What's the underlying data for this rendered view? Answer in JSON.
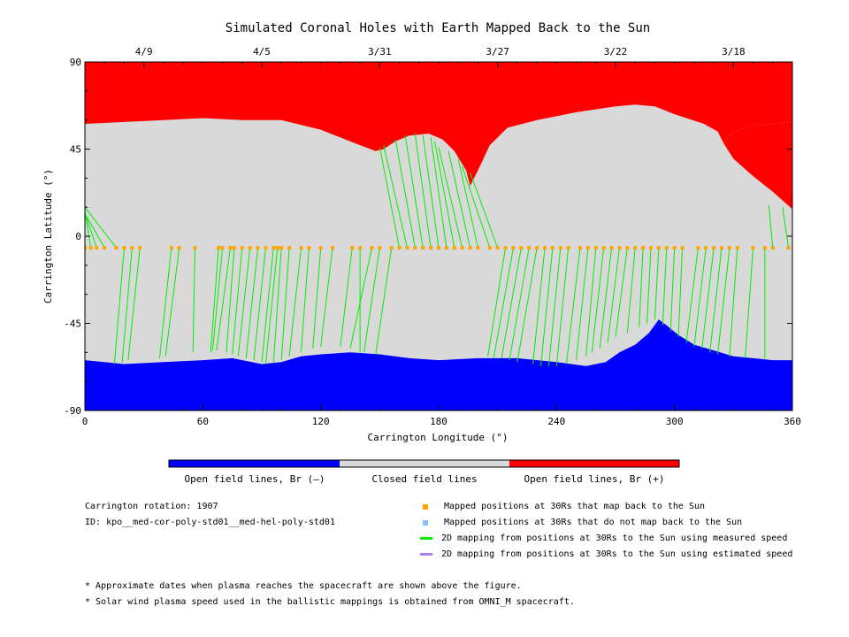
{
  "chart_data": {
    "type": "map",
    "title": "Simulated Coronal Holes with Earth Mapped Back to the Sun",
    "xlabel": "Carrington Longitude (°)",
    "ylabel": "Carrington Latitude (°)",
    "xlim": [
      0,
      360
    ],
    "ylim": [
      -90,
      90
    ],
    "x_ticks": [
      "0",
      "60",
      "120",
      "180",
      "240",
      "300",
      "360"
    ],
    "y_ticks": [
      "-90",
      "-45",
      "0",
      "45",
      "90"
    ],
    "top_axis": {
      "ticks": [
        {
          "label": "4/9",
          "lon": 30
        },
        {
          "label": "4/5",
          "lon": 90
        },
        {
          "label": "3/31",
          "lon": 150
        },
        {
          "label": "3/27",
          "lon": 210
        },
        {
          "label": "3/22",
          "lon": 270
        },
        {
          "label": "3/18",
          "lon": 330
        }
      ]
    },
    "colors": {
      "open_negative": "#0000ff",
      "closed": "#d9d9d9",
      "open_positive": "#ff0000",
      "mapped_point": "#ffa500",
      "unmapped_point": "#87bfff",
      "measured_line": "#00ee00",
      "estimated_line": "#b07cff"
    },
    "north_boundary": [
      [
        0,
        58
      ],
      [
        20,
        59
      ],
      [
        40,
        60
      ],
      [
        60,
        61
      ],
      [
        80,
        60
      ],
      [
        100,
        60
      ],
      [
        120,
        55
      ],
      [
        140,
        47
      ],
      [
        148,
        44
      ],
      [
        152,
        45
      ],
      [
        158,
        49
      ],
      [
        165,
        52
      ],
      [
        175,
        53
      ],
      [
        182,
        50
      ],
      [
        188,
        44
      ],
      [
        194,
        34
      ],
      [
        196,
        26
      ],
      [
        200,
        34
      ],
      [
        206,
        47
      ],
      [
        215,
        56
      ],
      [
        230,
        60
      ],
      [
        250,
        64
      ],
      [
        270,
        67
      ],
      [
        280,
        68
      ],
      [
        290,
        67
      ],
      [
        300,
        63
      ],
      [
        315,
        58
      ],
      [
        322,
        54
      ],
      [
        325,
        48
      ]
    ],
    "north_tongue_upper": [
      [
        325,
        48
      ],
      [
        330,
        54
      ],
      [
        340,
        57
      ],
      [
        350,
        58
      ],
      [
        360,
        59
      ]
    ],
    "north_tongue_lower": [
      [
        325,
        48
      ],
      [
        330,
        40
      ],
      [
        340,
        31
      ],
      [
        350,
        23
      ],
      [
        360,
        14
      ]
    ],
    "south_boundary": [
      [
        0,
        -64
      ],
      [
        20,
        -66
      ],
      [
        40,
        -65
      ],
      [
        60,
        -64
      ],
      [
        75,
        -63
      ],
      [
        90,
        -66
      ],
      [
        100,
        -65
      ],
      [
        110,
        -62
      ],
      [
        120,
        -61
      ],
      [
        135,
        -60
      ],
      [
        150,
        -61
      ],
      [
        165,
        -63
      ],
      [
        180,
        -64
      ],
      [
        200,
        -63
      ],
      [
        220,
        -63
      ],
      [
        240,
        -65
      ],
      [
        255,
        -67
      ],
      [
        265,
        -65
      ],
      [
        272,
        -60
      ],
      [
        280,
        -56
      ],
      [
        287,
        -50
      ],
      [
        292,
        -43
      ],
      [
        296,
        -46
      ],
      [
        302,
        -51
      ],
      [
        310,
        -56
      ],
      [
        320,
        -59
      ],
      [
        330,
        -62
      ],
      [
        340,
        -63
      ],
      [
        350,
        -64
      ],
      [
        360,
        -64
      ]
    ],
    "mapping_lines": [
      [
        0,
        -6,
        0,
        14
      ],
      [
        3,
        -6,
        0,
        13
      ],
      [
        6,
        -6,
        0,
        12
      ],
      [
        10,
        -6,
        1,
        10
      ],
      [
        16,
        -6,
        0,
        15
      ],
      [
        20,
        -6,
        15,
        -66
      ],
      [
        24,
        -6,
        19,
        -65
      ],
      [
        28,
        -6,
        22,
        -64
      ],
      [
        44,
        -6,
        38,
        -63
      ],
      [
        48,
        -6,
        41,
        -62
      ],
      [
        56,
        -6,
        55,
        -60
      ],
      [
        68,
        -6,
        64,
        -60
      ],
      [
        70,
        -6,
        65,
        -59
      ],
      [
        74,
        -6,
        67,
        -59
      ],
      [
        76,
        -6,
        72,
        -60
      ],
      [
        80,
        -6,
        75,
        -61
      ],
      [
        84,
        -6,
        78,
        -62
      ],
      [
        88,
        -6,
        82,
        -63
      ],
      [
        92,
        -6,
        86,
        -64
      ],
      [
        96,
        -6,
        90,
        -65
      ],
      [
        98,
        -6,
        92,
        -66
      ],
      [
        100,
        -6,
        96,
        -65
      ],
      [
        104,
        -6,
        100,
        -64
      ],
      [
        110,
        -6,
        104,
        -62
      ],
      [
        114,
        -6,
        110,
        -60
      ],
      [
        120,
        -6,
        116,
        -58
      ],
      [
        126,
        -6,
        120,
        -57
      ],
      [
        136,
        -6,
        130,
        -57
      ],
      [
        140,
        -6,
        140,
        -60
      ],
      [
        146,
        -6,
        135,
        -58
      ],
      [
        150,
        -6,
        142,
        -60
      ],
      [
        156,
        -6,
        148,
        -61
      ],
      [
        160,
        -6,
        150,
        46
      ],
      [
        164,
        -6,
        152,
        47
      ],
      [
        168,
        -6,
        158,
        50
      ],
      [
        172,
        -6,
        163,
        52
      ],
      [
        176,
        -6,
        168,
        53
      ],
      [
        180,
        -6,
        172,
        52
      ],
      [
        184,
        -6,
        176,
        51
      ],
      [
        188,
        -6,
        178,
        49
      ],
      [
        192,
        -6,
        180,
        46
      ],
      [
        196,
        -6,
        185,
        44
      ],
      [
        200,
        -6,
        190,
        40
      ],
      [
        206,
        -6,
        192,
        36
      ],
      [
        210,
        -6,
        196,
        33
      ],
      [
        214,
        -6,
        205,
        -62
      ],
      [
        218,
        -6,
        208,
        -63
      ],
      [
        222,
        -6,
        212,
        -63
      ],
      [
        226,
        -6,
        216,
        -64
      ],
      [
        230,
        -6,
        220,
        -65
      ],
      [
        234,
        -6,
        228,
        -66
      ],
      [
        238,
        -6,
        232,
        -67
      ],
      [
        242,
        -6,
        236,
        -67
      ],
      [
        246,
        -6,
        240,
        -67
      ],
      [
        252,
        -6,
        245,
        -66
      ],
      [
        256,
        -6,
        250,
        -64
      ],
      [
        260,
        -6,
        255,
        -62
      ],
      [
        264,
        -6,
        258,
        -60
      ],
      [
        268,
        -6,
        262,
        -58
      ],
      [
        272,
        -6,
        266,
        -55
      ],
      [
        276,
        -6,
        270,
        -52
      ],
      [
        280,
        -6,
        276,
        -50
      ],
      [
        284,
        -6,
        282,
        -47
      ],
      [
        288,
        -6,
        286,
        -45
      ],
      [
        292,
        -6,
        290,
        -43
      ],
      [
        296,
        -6,
        294,
        -46
      ],
      [
        300,
        -6,
        298,
        -49
      ],
      [
        304,
        -6,
        302,
        -52
      ],
      [
        312,
        -6,
        306,
        -55
      ],
      [
        316,
        -6,
        310,
        -57
      ],
      [
        320,
        -6,
        314,
        -58
      ],
      [
        324,
        -6,
        318,
        -60
      ],
      [
        328,
        -6,
        322,
        -61
      ],
      [
        332,
        -6,
        328,
        -62
      ],
      [
        340,
        -6,
        336,
        -63
      ],
      [
        346,
        -6,
        346,
        -63
      ],
      [
        350,
        -6,
        348,
        16
      ],
      [
        358,
        -6,
        355,
        15
      ]
    ]
  },
  "legend_bar": {
    "labels": [
      "Open field lines, Br (–)",
      "Closed field lines",
      "Open field lines, Br (+)"
    ]
  },
  "info": {
    "rotation": "Carrington rotation: 1907",
    "id": "ID: kpo__med-cor-poly-std01__med-hel-poly-std01"
  },
  "legend": [
    {
      "kind": "square",
      "color": "#ffa500",
      "label": "Mapped positions at 30Rs that map back to the Sun"
    },
    {
      "kind": "square",
      "color": "#87bfff",
      "label": "Mapped positions at 30Rs that do not map back to the Sun"
    },
    {
      "kind": "line",
      "color": "#00ee00",
      "label": "2D mapping from positions at 30Rs to the Sun using measured speed"
    },
    {
      "kind": "line",
      "color": "#b07cff",
      "label": "2D mapping from positions at 30Rs to the Sun using estimated speed"
    }
  ],
  "footnotes": [
    "* Approximate dates when plasma reaches the spacecraft are shown above the figure.",
    "* Solar wind plasma speed used in the ballistic mappings is obtained from OMNI_M spacecraft."
  ]
}
